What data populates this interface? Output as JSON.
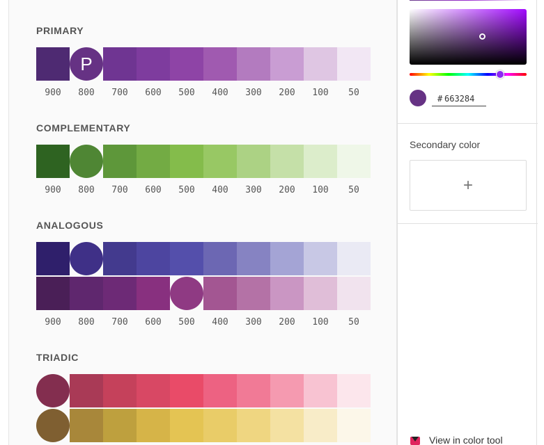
{
  "primary": {
    "title": "PRIMARY",
    "letter": "P",
    "selected_index": 1,
    "swatches": [
      "#4e2a72",
      "#663284",
      "#6f3592",
      "#7e3c9e",
      "#8e44a6",
      "#a05ab0",
      "#b37bbf",
      "#c99dd3",
      "#dfc6e3",
      "#f2e7f4"
    ],
    "labels": [
      "900",
      "800",
      "700",
      "600",
      "500",
      "400",
      "300",
      "200",
      "100",
      "50"
    ]
  },
  "complementary": {
    "title": "COMPLEMENTARY",
    "selected_index": 1,
    "swatches": [
      "#2e6321",
      "#4f8634",
      "#5e973a",
      "#73ab44",
      "#84bc4b",
      "#98c864",
      "#acd284",
      "#c5e0a8",
      "#dcedcb",
      "#eff7e8"
    ],
    "labels": [
      "900",
      "800",
      "700",
      "600",
      "500",
      "400",
      "300",
      "200",
      "100",
      "50"
    ]
  },
  "analogous": {
    "title": "ANALOGOUS",
    "row1_selected_index": 1,
    "row1": [
      "#2f1f6b",
      "#3f3087",
      "#433a8e",
      "#4d45a0",
      "#544fab",
      "#6c67b3",
      "#8683c2",
      "#a4a4d5",
      "#c8c8e5",
      "#eaeaf4"
    ],
    "row2_selected_index": 4,
    "row2": [
      "#4a1f57",
      "#5f276e",
      "#6d2a76",
      "#88307f",
      "#8f3a83",
      "#a35692",
      "#b472a6",
      "#ca96c3",
      "#e0bed8",
      "#f1e3ee"
    ],
    "labels": [
      "900",
      "800",
      "700",
      "600",
      "500",
      "400",
      "300",
      "200",
      "100",
      "50"
    ]
  },
  "triadic": {
    "title": "TRIADIC",
    "row1_selected_index": 0,
    "row1": [
      "#832e4f",
      "#a93a56",
      "#c5415b",
      "#d84864",
      "#e94b68",
      "#ed6282",
      "#f17a96",
      "#f59ab0",
      "#f8c3d2",
      "#fce6ec"
    ],
    "row2_selected_index": 0,
    "row2": [
      "#7f5f31",
      "#a8873a",
      "#bea03e",
      "#d6b448",
      "#e4c453",
      "#e9cc68",
      "#efd681",
      "#f4e1a2",
      "#f8ecc8",
      "#fcf7e9"
    ]
  },
  "side": {
    "hex_prefix": "#",
    "hex_value": "663284",
    "secondary_label": "Secondary color",
    "add_symbol": "+",
    "view_tool_label": "View in color tool"
  }
}
